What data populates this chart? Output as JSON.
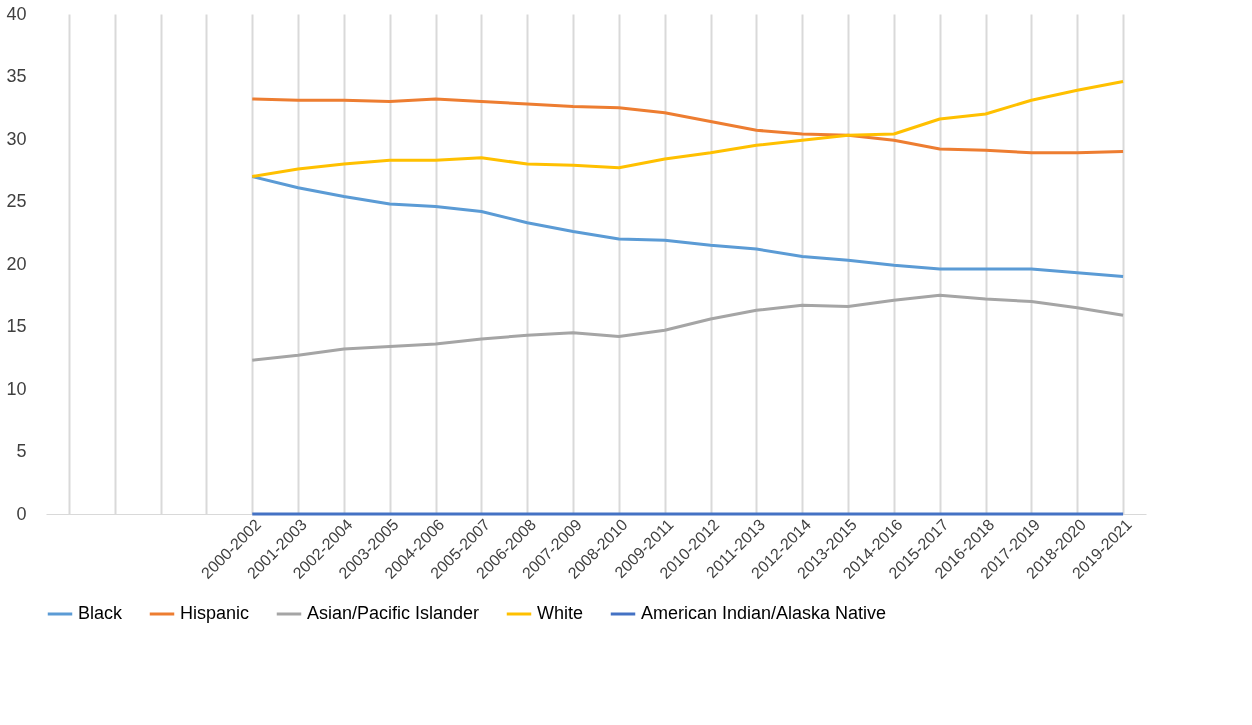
{
  "chart_data": {
    "type": "line",
    "categories": [
      null,
      null,
      null,
      null,
      "2000-2002",
      "2001-2003",
      "2002-2004",
      "2003-2005",
      "2004-2006",
      "2005-2007",
      "2006-2008",
      "2007-2009",
      "2008-2010",
      "2009-2011",
      "2010-2012",
      "2011-2013",
      "2012-2014",
      "2013-2015",
      "2014-2016",
      "2015-2017",
      "2016-2018",
      "2017-2019",
      "2018-2020",
      "2019-2021"
    ],
    "series": [
      {
        "name": "Black",
        "color": "#5b9bd5",
        "values": [
          null,
          null,
          null,
          null,
          27.0,
          26.1,
          25.4,
          24.8,
          24.6,
          24.2,
          23.3,
          22.6,
          22.0,
          21.9,
          21.5,
          21.2,
          20.6,
          20.3,
          19.9,
          19.6,
          19.6,
          19.6,
          19.3,
          19.0
        ]
      },
      {
        "name": "Hispanic",
        "color": "#ed7d31",
        "values": [
          null,
          null,
          null,
          null,
          33.2,
          33.1,
          33.1,
          33.0,
          33.2,
          33.0,
          32.8,
          32.6,
          32.5,
          32.1,
          31.4,
          30.7,
          30.4,
          30.3,
          29.9,
          29.2,
          29.1,
          28.9,
          28.9,
          29.0
        ]
      },
      {
        "name": "Asian/Pacific Islander",
        "color": "#a5a5a5",
        "values": [
          null,
          null,
          null,
          null,
          12.3,
          12.7,
          13.2,
          13.4,
          13.6,
          14.0,
          14.3,
          14.5,
          14.2,
          14.7,
          15.6,
          16.3,
          16.7,
          16.6,
          17.1,
          17.5,
          17.2,
          17.0,
          16.5,
          15.9
        ]
      },
      {
        "name": "White",
        "color": "#ffc000",
        "values": [
          null,
          null,
          null,
          null,
          27.0,
          27.6,
          28.0,
          28.3,
          28.3,
          28.5,
          28.0,
          27.9,
          27.7,
          28.4,
          28.9,
          29.5,
          29.9,
          30.3,
          30.4,
          31.6,
          32.0,
          33.1,
          33.9,
          34.6
        ]
      },
      {
        "name": "American Indian/Alaska Native",
        "color": "#4472c4",
        "values": [
          null,
          null,
          null,
          null,
          0,
          0,
          0,
          0,
          0,
          0,
          0,
          0,
          0,
          0,
          0,
          0,
          0,
          0,
          0,
          0,
          0,
          0,
          0,
          0
        ]
      }
    ],
    "ylim": [
      0,
      40
    ],
    "yticks": [
      0,
      5,
      10,
      15,
      20,
      25,
      30,
      35,
      40
    ],
    "grid": "x",
    "legend": "bottom",
    "line_style": "solid",
    "marker": "none"
  }
}
